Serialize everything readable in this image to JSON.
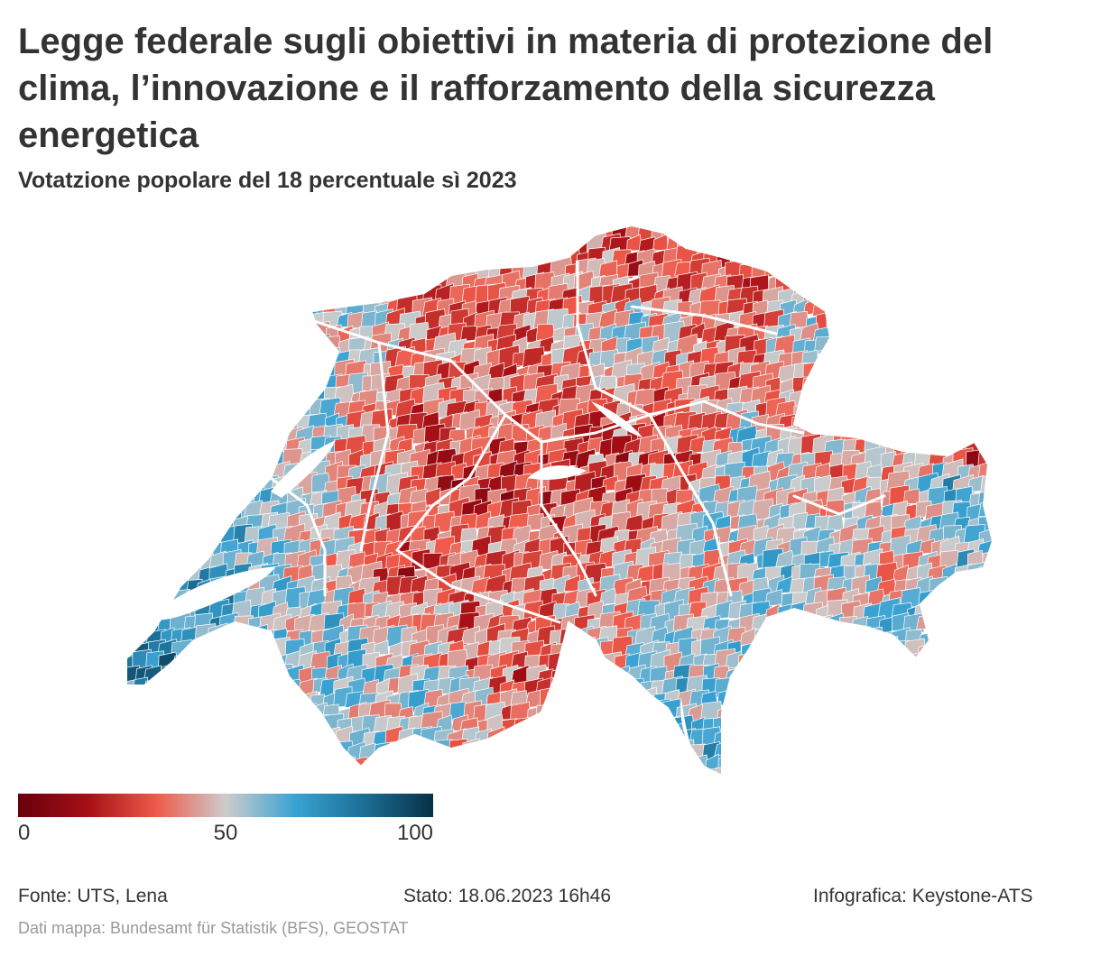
{
  "title": "Legge federale sugli obiettivi in materia di protezione del clima, l’innovazione e il rafforzamento della sicurezza energetica",
  "subtitle": "Votatzione popolare del 18 percentuale sì 2023",
  "legend": {
    "min_label": "0",
    "mid_label": "50",
    "max_label": "100",
    "color_stops": [
      "#67000d",
      "#a50f15",
      "#ef5a4a",
      "#cccccc",
      "#3aa3d3",
      "#1b6f96",
      "#083047"
    ],
    "no_data_color": "#cccccc"
  },
  "footer": {
    "source": "Fonte: UTS, Lena",
    "status": "Stato: 18.06.2023 16h46",
    "credit": "Infografica: Keystone-ATS",
    "map_data": "Dati mappa: Bundesamt für Statistik (BFS), GEOSTAT"
  }
}
